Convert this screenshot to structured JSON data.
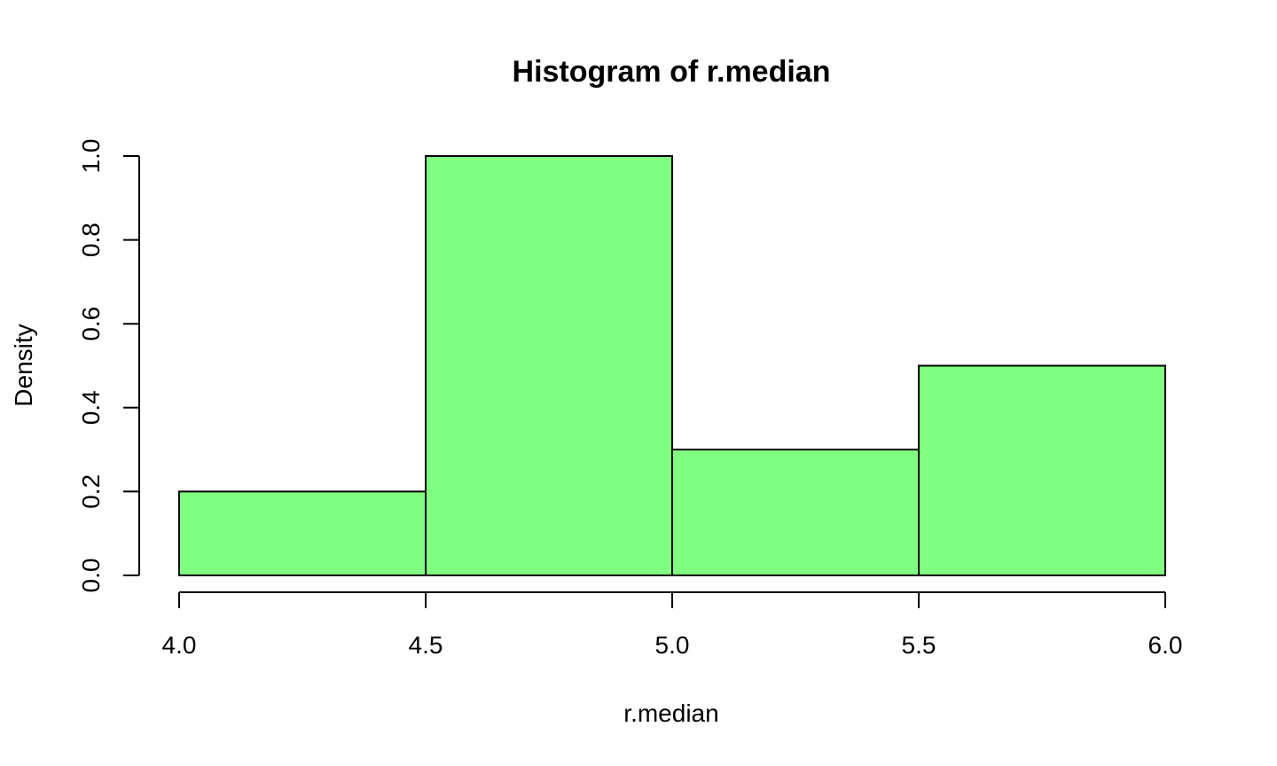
{
  "chart_data": {
    "type": "bar",
    "subtype": "histogram",
    "title": "Histogram of r.median",
    "xlabel": "r.median",
    "ylabel": "Density",
    "bins": [
      {
        "from": 4.0,
        "to": 4.5,
        "density": 0.2
      },
      {
        "from": 4.5,
        "to": 5.0,
        "density": 1.0
      },
      {
        "from": 5.0,
        "to": 5.5,
        "density": 0.3
      },
      {
        "from": 5.5,
        "to": 6.0,
        "density": 0.5
      }
    ],
    "xlim": [
      4.0,
      6.0
    ],
    "ylim": [
      0.0,
      1.0
    ],
    "xticks": [
      4.0,
      4.5,
      5.0,
      5.5,
      6.0
    ],
    "xtick_labels": [
      "4.0",
      "4.5",
      "5.0",
      "5.5",
      "6.0"
    ],
    "yticks": [
      0.0,
      0.2,
      0.4,
      0.6,
      0.8,
      1.0
    ],
    "ytick_labels": [
      "0.0",
      "0.2",
      "0.4",
      "0.6",
      "0.8",
      "1.0"
    ],
    "bar_color": "#80ff80",
    "edge_color": "#000000",
    "grid": false,
    "legend": "none"
  }
}
